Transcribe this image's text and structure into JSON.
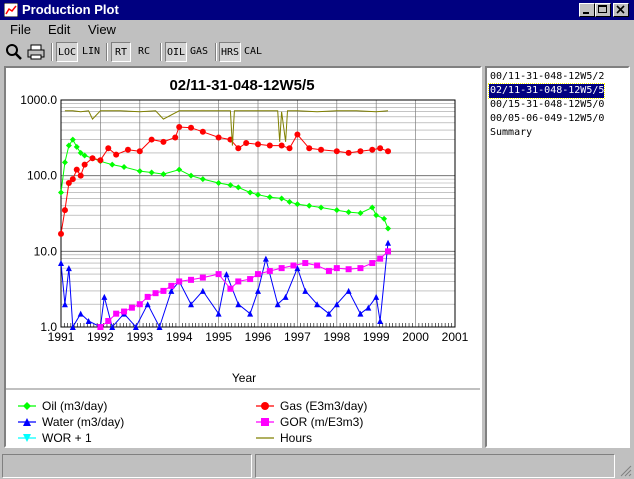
{
  "window": {
    "title": "Production Plot"
  },
  "menu": {
    "items": [
      "File",
      "Edit",
      "View"
    ]
  },
  "toolbar": {
    "buttons": [
      "LOC",
      "LIN",
      "RT",
      "RC",
      "OIL",
      "GAS",
      "HRS",
      "CAL"
    ]
  },
  "well_list": {
    "items": [
      "00/11-31-048-12W5/2",
      "02/11-31-048-12W5/5",
      "00/15-31-048-12W5/0",
      "00/05-06-049-12W5/0",
      "Summary"
    ],
    "selected_index": 1
  },
  "colors": {
    "oil": "#00ff00",
    "gas": "#ff0000",
    "water": "#0000ff",
    "gor": "#ff00ff",
    "wor": "#00ffff",
    "hours": "#808000",
    "grid": "#808080"
  },
  "chart_data": {
    "type": "line",
    "title": "02/11-31-048-12W5/5",
    "xlabel": "Year",
    "ylabel": "",
    "log_y": true,
    "xlim": [
      1991,
      2001
    ],
    "ylim": [
      1.0,
      1000.0
    ],
    "x_ticks": [
      "1991",
      "1992",
      "1993",
      "1994",
      "1995",
      "1996",
      "1997",
      "1998",
      "1999",
      "2000",
      "2001"
    ],
    "y_ticks": [
      "1.0",
      "10.0",
      "100.0",
      "1000.0"
    ],
    "grid": true,
    "legend_position": "bottom",
    "legend": [
      {
        "name": "Oil (m3/day)",
        "color": "#00ff00",
        "marker": "diamond"
      },
      {
        "name": "Gas (E3m3/day)",
        "color": "#ff0000",
        "marker": "circle"
      },
      {
        "name": "Water (m3/day)",
        "color": "#0000ff",
        "marker": "triangle-up"
      },
      {
        "name": "GOR (m/E3m3)",
        "color": "#ff00ff",
        "marker": "square"
      },
      {
        "name": "WOR + 1",
        "color": "#00ffff",
        "marker": "triangle-down"
      },
      {
        "name": "Hours",
        "color": "#808000",
        "marker": "line"
      }
    ],
    "series": [
      {
        "name": "Oil (m3/day)",
        "marker": "diamond",
        "x": [
          1991.0,
          1991.1,
          1991.2,
          1991.3,
          1991.4,
          1991.5,
          1991.6,
          1991.8,
          1992.0,
          1992.3,
          1992.6,
          1993.0,
          1993.3,
          1993.6,
          1994.0,
          1994.3,
          1994.6,
          1995.0,
          1995.3,
          1995.5,
          1995.8,
          1996.0,
          1996.3,
          1996.6,
          1996.8,
          1997.0,
          1997.3,
          1997.6,
          1998.0,
          1998.3,
          1998.6,
          1998.9,
          1999.0,
          1999.2,
          1999.3
        ],
        "y": [
          60,
          150,
          250,
          300,
          240,
          200,
          185,
          170,
          155,
          140,
          130,
          115,
          110,
          105,
          120,
          100,
          90,
          80,
          75,
          70,
          60,
          56,
          52,
          50,
          45,
          42,
          40,
          38,
          35,
          33,
          32,
          38,
          30,
          27,
          20
        ]
      },
      {
        "name": "Gas (E3m3/day)",
        "marker": "circle",
        "x": [
          1991.0,
          1991.1,
          1991.2,
          1991.3,
          1991.4,
          1991.5,
          1991.6,
          1991.8,
          1992.0,
          1992.2,
          1992.4,
          1992.7,
          1993.0,
          1993.3,
          1993.6,
          1993.9,
          1994.0,
          1994.3,
          1994.6,
          1995.0,
          1995.3,
          1995.5,
          1995.7,
          1996.0,
          1996.3,
          1996.6,
          1996.8,
          1997.0,
          1997.3,
          1997.6,
          1998.0,
          1998.3,
          1998.6,
          1998.9,
          1999.1,
          1999.3
        ],
        "y": [
          17,
          35,
          80,
          90,
          120,
          100,
          140,
          170,
          160,
          230,
          190,
          220,
          210,
          300,
          280,
          320,
          440,
          430,
          380,
          320,
          300,
          230,
          270,
          260,
          250,
          250,
          230,
          350,
          230,
          220,
          210,
          200,
          210,
          220,
          230,
          210
        ]
      },
      {
        "name": "Water (m3/day)",
        "marker": "triangle-up",
        "x": [
          1991.0,
          1991.1,
          1991.2,
          1991.3,
          1991.5,
          1991.7,
          1992.0,
          1992.1,
          1992.3,
          1992.6,
          1992.9,
          1993.2,
          1993.5,
          1993.8,
          1994.0,
          1994.3,
          1994.6,
          1995.0,
          1995.2,
          1995.5,
          1995.8,
          1996.0,
          1996.2,
          1996.5,
          1996.7,
          1997.0,
          1997.2,
          1997.5,
          1997.8,
          1998.0,
          1998.3,
          1998.6,
          1998.8,
          1999.0,
          1999.1,
          1999.3
        ],
        "y": [
          7.0,
          2.0,
          6.0,
          1.0,
          1.5,
          1.2,
          1.0,
          2.5,
          1.0,
          1.5,
          1.0,
          2.0,
          1.0,
          3.0,
          4.0,
          2.0,
          3.0,
          1.5,
          5.0,
          2.0,
          1.5,
          3.0,
          8.0,
          2.0,
          2.5,
          6.0,
          3.0,
          2.0,
          1.5,
          2.0,
          3.0,
          1.5,
          1.8,
          2.5,
          1.2,
          13.0
        ]
      },
      {
        "name": "GOR (m/E3m3)",
        "marker": "square",
        "x": [
          1992.0,
          1992.2,
          1992.4,
          1992.6,
          1992.8,
          1993.0,
          1993.2,
          1993.4,
          1993.6,
          1993.8,
          1994.0,
          1994.3,
          1994.6,
          1995.0,
          1995.3,
          1995.5,
          1995.8,
          1996.0,
          1996.3,
          1996.6,
          1996.9,
          1997.2,
          1997.5,
          1997.8,
          1998.0,
          1998.3,
          1998.6,
          1998.9,
          1999.1,
          1999.3
        ],
        "y": [
          1.0,
          1.2,
          1.5,
          1.6,
          1.8,
          2.0,
          2.5,
          2.8,
          3.0,
          3.5,
          4.0,
          4.2,
          4.5,
          5.0,
          3.2,
          4.0,
          4.3,
          5.0,
          5.5,
          6.0,
          6.5,
          7.0,
          6.5,
          5.5,
          6.0,
          5.8,
          6.0,
          7.0,
          8.0,
          10.0
        ]
      },
      {
        "name": "Hours",
        "x": [
          1991.1,
          1991.3,
          1991.5,
          1991.7,
          1991.8,
          1992.0,
          1992.5,
          1993.0,
          1993.4,
          1993.6,
          1994.0,
          1994.5,
          1995.0,
          1995.3,
          1995.35,
          1995.4,
          1996.0,
          1996.5,
          1996.55,
          1996.6,
          1996.7,
          1996.75,
          1997.0,
          1997.5,
          1998.0,
          1998.5,
          1999.0,
          1999.3
        ],
        "y": [
          720,
          720,
          700,
          720,
          560,
          720,
          720,
          700,
          720,
          560,
          720,
          720,
          720,
          720,
          250,
          720,
          720,
          720,
          280,
          700,
          280,
          720,
          720,
          700,
          720,
          720,
          700,
          720
        ]
      }
    ]
  }
}
